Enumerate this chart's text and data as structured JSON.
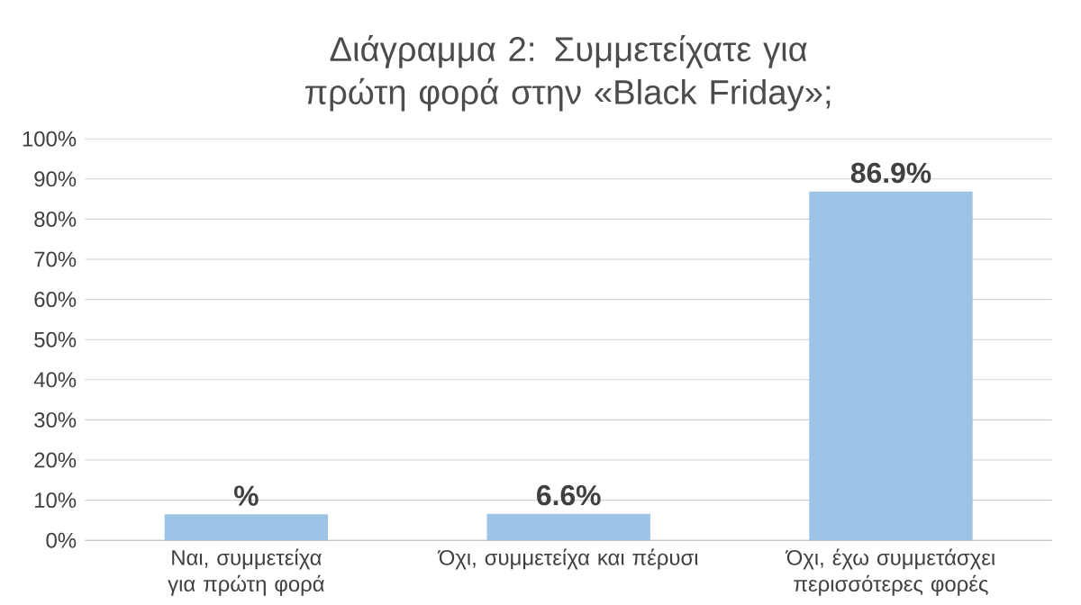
{
  "chart_data": {
    "type": "bar",
    "title": "Διάγραμμα 2: Συμμετείχατε για πρώτη φορά στην «Black Friday»;",
    "categories": [
      "Ναι, συμμετείχα για πρώτη φορά",
      "Όχι, συμμετείχα και πέρυσι",
      "Όχι, έχω συμμετάσχει περισσότερες φορές"
    ],
    "values": [
      6.5,
      6.6,
      86.9
    ],
    "value_labels": [
      "%",
      "6.6%",
      "86.9%"
    ],
    "color": "#9dc3e6",
    "ylim": [
      0,
      100
    ],
    "yticks": [
      {
        "value": 0,
        "label": "0%"
      },
      {
        "value": 10,
        "label": "10%"
      },
      {
        "value": 20,
        "label": "20%"
      },
      {
        "value": 30,
        "label": "30%"
      },
      {
        "value": 40,
        "label": "40%"
      },
      {
        "value": 50,
        "label": "50%"
      },
      {
        "value": 60,
        "label": "60%"
      },
      {
        "value": 70,
        "label": "70%"
      },
      {
        "value": 80,
        "label": "80%"
      },
      {
        "value": 90,
        "label": "90%"
      },
      {
        "value": 100,
        "label": "100%"
      }
    ],
    "grid": "y"
  }
}
